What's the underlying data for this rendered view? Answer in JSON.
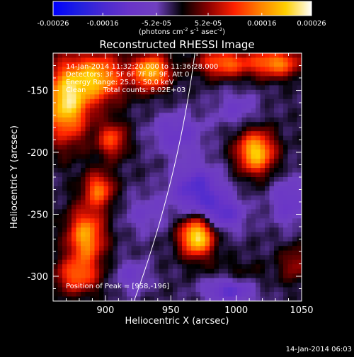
{
  "chart_data": {
    "type": "heatmap",
    "title": "Reconstructed RHESSI Image",
    "xlabel": "Heliocentric X (arcsec)",
    "ylabel": "Heliocentric Y (arcsec)",
    "xlim": [
      860,
      1050
    ],
    "ylim": [
      -320,
      -120
    ],
    "x_ticks": [
      900,
      950,
      1000,
      1050
    ],
    "y_ticks": [
      -150,
      -200,
      -250,
      -300
    ],
    "colorbar": {
      "range": [
        -0.00026,
        0.00026
      ],
      "ticks": [
        "-0.00026",
        "-0.00016",
        "-5.2e-05",
        "5.2e-05",
        "0.00016",
        "0.00026"
      ],
      "tick_values": [
        -0.00026,
        -0.00016,
        -5.2e-05,
        5.2e-05,
        0.00016,
        0.00026
      ],
      "label_parts": [
        "(photons cm",
        "-2",
        " s",
        "-1",
        " asec",
        "-2",
        ")"
      ],
      "colors": [
        "#0000ff",
        "#2020e0",
        "#4b2ad0",
        "#6a35c8",
        "#7040c0",
        "#000000",
        "#8a0000",
        "#ff2000",
        "#ff8000",
        "#ffd000",
        "#ffffff"
      ]
    },
    "annotations": [
      "14-Jan-2014 11:32:20.000 to 11:36:28.000",
      "Detectors: 3F 5F 6F 7F 8F 9F, Att 0",
      "Energy Range: 25.0 - 50.0 keV",
      "Clean",
      "Total counts: 8.02E+03"
    ],
    "peak_label": "Position of Peak = [958,-196]",
    "footer_timestamp": "14-Jan-2014 06:03",
    "sources": [
      {
        "x": 870,
        "y": -160,
        "amp": 0.00024,
        "sx": 12,
        "sy": 22
      },
      {
        "x": 895,
        "y": -140,
        "amp": 0.0002,
        "sx": 14,
        "sy": 14
      },
      {
        "x": 935,
        "y": -135,
        "amp": 0.00022,
        "sx": 10,
        "sy": 10
      },
      {
        "x": 990,
        "y": -128,
        "amp": 0.00016,
        "sx": 14,
        "sy": 8
      },
      {
        "x": 1030,
        "y": -128,
        "amp": 0.00018,
        "sx": 14,
        "sy": 8
      },
      {
        "x": 1015,
        "y": -200,
        "amp": 0.00023,
        "sx": 10,
        "sy": 12
      },
      {
        "x": 970,
        "y": -268,
        "amp": 0.00026,
        "sx": 9,
        "sy": 11
      },
      {
        "x": 905,
        "y": -190,
        "amp": 0.00014,
        "sx": 8,
        "sy": 10
      },
      {
        "x": 895,
        "y": -230,
        "amp": 0.00016,
        "sx": 8,
        "sy": 10
      },
      {
        "x": 885,
        "y": -268,
        "amp": 0.0002,
        "sx": 10,
        "sy": 16
      },
      {
        "x": 878,
        "y": -300,
        "amp": 0.00014,
        "sx": 12,
        "sy": 10
      },
      {
        "x": 1045,
        "y": -290,
        "amp": 8e-05,
        "sx": 8,
        "sy": 10
      },
      {
        "x": 1000,
        "y": -300,
        "amp": 5e-05,
        "sx": 16,
        "sy": 8
      },
      {
        "x": 970,
        "y": -230,
        "amp": -0.00012,
        "sx": 14,
        "sy": 14
      },
      {
        "x": 955,
        "y": -185,
        "amp": -8e-05,
        "sx": 14,
        "sy": 12
      },
      {
        "x": 1000,
        "y": -165,
        "amp": -6e-05,
        "sx": 12,
        "sy": 10
      },
      {
        "x": 930,
        "y": -250,
        "amp": -5e-05,
        "sx": 12,
        "sy": 12
      },
      {
        "x": 990,
        "y": -250,
        "amp": -0.0001,
        "sx": 12,
        "sy": 10
      },
      {
        "x": 995,
        "y": -310,
        "amp": -0.00012,
        "sx": 14,
        "sy": 8
      },
      {
        "x": 920,
        "y": -300,
        "amp": -6e-05,
        "sx": 10,
        "sy": 10
      },
      {
        "x": 1040,
        "y": -240,
        "amp": -8e-05,
        "sx": 10,
        "sy": 14
      }
    ],
    "limb_arc": {
      "center": [
        0,
        0
      ],
      "radius_arcsec": 975.8
    }
  }
}
